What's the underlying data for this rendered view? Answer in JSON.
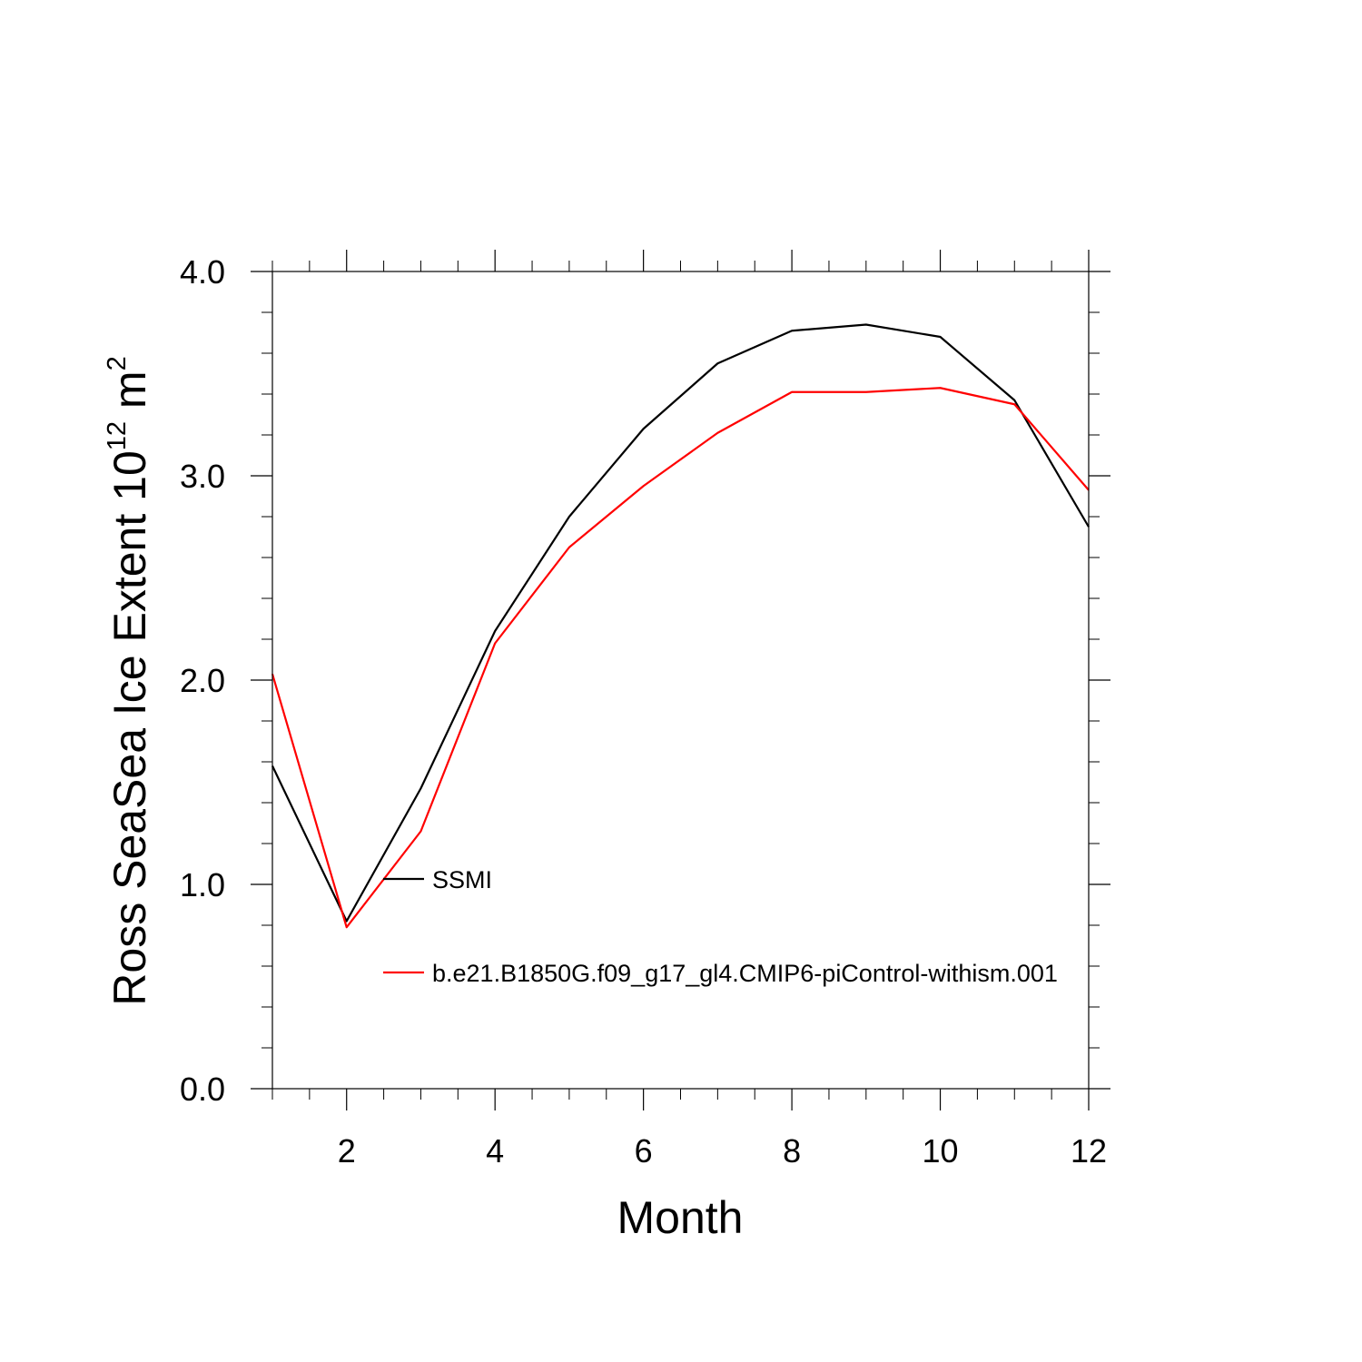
{
  "chart_data": {
    "type": "line",
    "title": "",
    "xlabel": "Month",
    "ylabel": {
      "text": "Ross SeaSea Ice Extent 10",
      "superscript": "12",
      "unit": " m",
      "unit_superscript": "2"
    },
    "xlim": [
      1,
      12
    ],
    "ylim": [
      0,
      4
    ],
    "x_ticks": [
      2,
      4,
      6,
      8,
      10,
      12
    ],
    "x_tick_labels": [
      "2",
      "4",
      "6",
      "8",
      "10",
      "12"
    ],
    "y_ticks": [
      0,
      1,
      2,
      3,
      4
    ],
    "y_tick_labels": [
      "0.0",
      "1.0",
      "2.0",
      "3.0",
      "4.0"
    ],
    "grid": false,
    "legend_placement": "inside, lower-left",
    "x": [
      1,
      2,
      3,
      4,
      5,
      6,
      7,
      8,
      9,
      10,
      11,
      12
    ],
    "series": [
      {
        "name": "SSMI",
        "color": "#000000",
        "values": [
          1.58,
          0.82,
          1.47,
          2.24,
          2.8,
          3.23,
          3.55,
          3.71,
          3.74,
          3.68,
          3.37,
          2.75
        ]
      },
      {
        "name": "b.e21.B1850G.f09_g17_gl4.CMIP6-piControl-withism.001",
        "color": "#ff0000",
        "values": [
          2.03,
          0.79,
          1.26,
          2.18,
          2.65,
          2.95,
          3.21,
          3.41,
          3.41,
          3.43,
          3.35,
          2.93
        ]
      }
    ]
  }
}
